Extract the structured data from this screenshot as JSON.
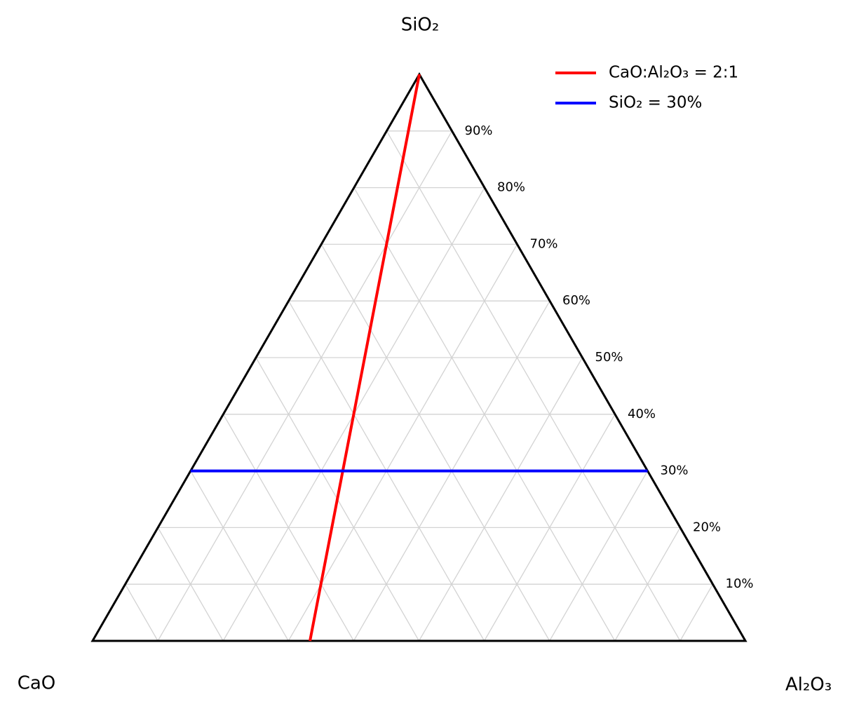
{
  "chart_data": {
    "type": "ternary",
    "vertices": {
      "top": "SiO₂",
      "left": "CaO",
      "right": "Al₂O₃"
    },
    "lim": [
      0,
      100
    ],
    "ticks": [
      {
        "value": 10,
        "label": "10%"
      },
      {
        "value": 20,
        "label": "20%"
      },
      {
        "value": 30,
        "label": "30%"
      },
      {
        "value": 40,
        "label": "40%"
      },
      {
        "value": 50,
        "label": "50%"
      },
      {
        "value": 60,
        "label": "60%"
      },
      {
        "value": 70,
        "label": "70%"
      },
      {
        "value": 80,
        "label": "80%"
      },
      {
        "value": 90,
        "label": "90%"
      }
    ],
    "grid": true,
    "legend": "upper right",
    "series": [
      {
        "name": "CaO:Al₂O₃ = 2:1",
        "color": "#ff0000",
        "sio2": [
          100,
          0
        ],
        "cao": [
          0,
          66.7
        ],
        "al2o3": [
          0,
          33.3
        ]
      },
      {
        "name": "SiO₂ = 30%",
        "color": "#0000ff",
        "sio2": [
          30,
          30
        ],
        "cao": [
          70,
          0
        ],
        "al2o3": [
          0,
          70
        ]
      }
    ]
  }
}
